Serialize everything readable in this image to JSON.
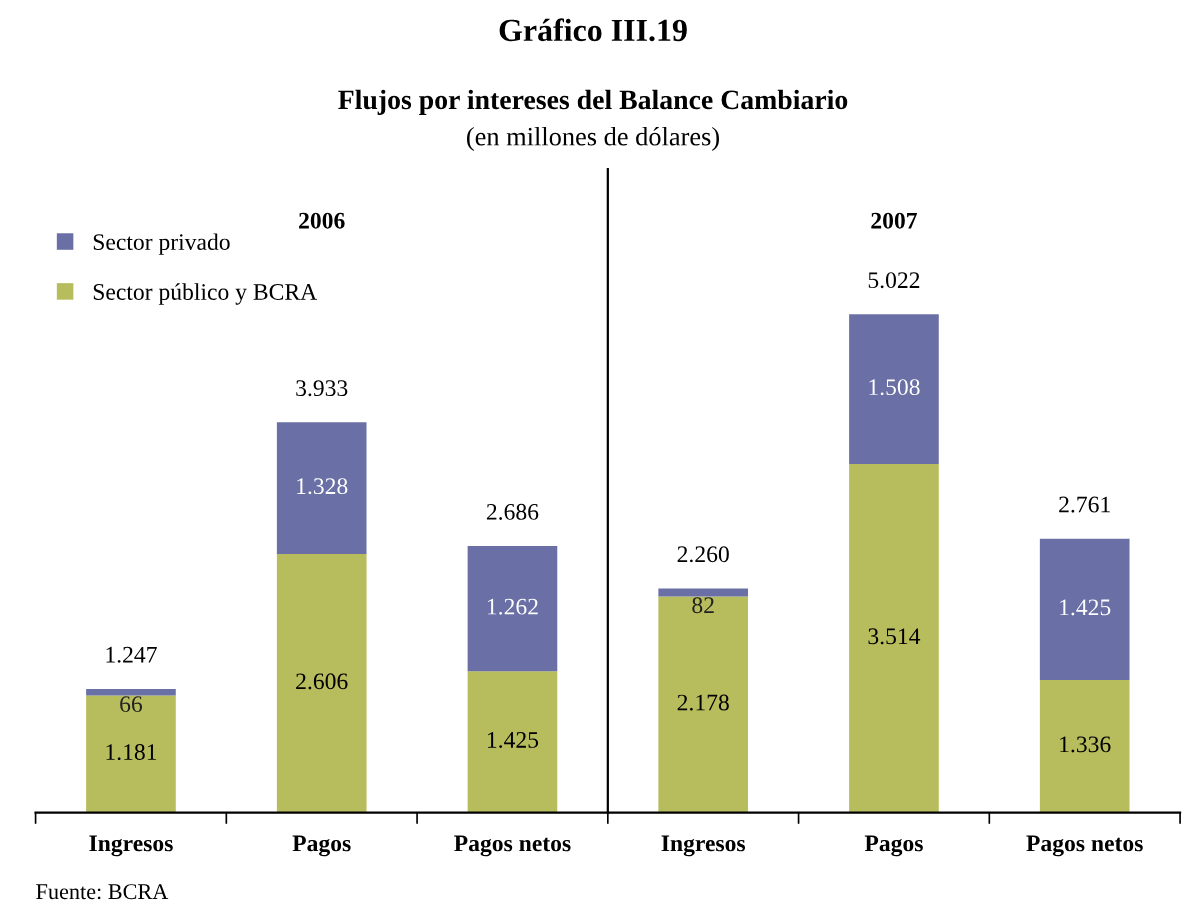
{
  "chart_data": {
    "type": "bar",
    "stacked": true,
    "title": "Gráfico III.19",
    "subtitle": "Flujos por intereses del Balance Cambiario",
    "categories": [
      "Ingresos",
      "Pagos",
      "Pagos netos",
      "Ingresos",
      "Pagos",
      "Pagos netos"
    ],
    "series": [
      {
        "name": "Sector público y BCRA",
        "color": "#b7bd5c",
        "values": [
          1181,
          2606,
          1425,
          2178,
          3514,
          1336
        ],
        "value_labels": [
          "1.181",
          "2.606",
          "1.425",
          "2.178",
          "3.514",
          "1.336"
        ]
      },
      {
        "name": "Sector privado",
        "color": "#6a70a6",
        "values": [
          66,
          1328,
          1262,
          82,
          1508,
          1425
        ],
        "value_labels": [
          "66",
          "1.328",
          "1.262",
          "82",
          "1.508",
          "1.425"
        ]
      }
    ],
    "totals": [
      "1.247",
      "3.933",
      "2.686",
      "2.260",
      "5.022",
      "2.761"
    ],
    "annotations": [
      "(en millones de dólares)",
      "2006",
      "2007",
      "Fuente: BCRA"
    ],
    "legend": "top left",
    "grid": false
  }
}
